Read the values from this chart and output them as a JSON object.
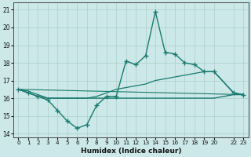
{
  "xlabel": "Humidex (Indice chaleur)",
  "xlim": [
    -0.5,
    23.5
  ],
  "ylim": [
    13.8,
    21.4
  ],
  "yticks": [
    14,
    15,
    16,
    17,
    18,
    19,
    20,
    21
  ],
  "xticks": [
    0,
    1,
    2,
    3,
    4,
    5,
    6,
    7,
    8,
    9,
    10,
    11,
    12,
    13,
    14,
    15,
    16,
    17,
    18,
    19,
    20,
    22,
    23
  ],
  "xtick_labels": [
    "0",
    "1",
    "2",
    "3",
    "4",
    "5",
    "6",
    "7",
    "8",
    "9",
    "10",
    "11",
    "12",
    "13",
    "14",
    "15",
    "16",
    "17",
    "18",
    "19",
    "20",
    "22",
    "23"
  ],
  "line_color": "#1a7a6e",
  "bg_color": "#cce8e8",
  "grid_color": "#aacfcf",
  "line1_x": [
    0,
    1,
    2,
    3,
    4,
    5,
    6,
    7,
    8,
    9,
    10,
    11,
    12,
    13,
    14,
    15,
    16,
    17,
    18,
    19,
    20,
    22,
    23
  ],
  "line1_y": [
    16.5,
    16.3,
    16.1,
    15.9,
    15.3,
    14.7,
    14.3,
    14.5,
    15.6,
    16.1,
    16.1,
    18.1,
    17.9,
    18.4,
    20.9,
    18.6,
    18.5,
    18.0,
    17.9,
    17.5,
    17.5,
    16.3,
    16.2
  ],
  "line2_x": [
    0,
    1,
    2,
    3,
    4,
    5,
    6,
    7,
    8,
    9,
    10,
    11,
    12,
    13,
    14,
    15,
    16,
    17,
    18,
    19,
    20,
    22,
    23
  ],
  "line2_y": [
    16.5,
    16.3,
    16.1,
    16.0,
    16.0,
    16.0,
    16.0,
    16.0,
    16.0,
    16.0,
    16.0,
    16.0,
    16.0,
    16.0,
    16.0,
    16.0,
    16.0,
    16.0,
    16.0,
    16.0,
    16.0,
    16.2,
    16.2
  ],
  "line3_x": [
    0,
    1,
    2,
    3,
    4,
    5,
    6,
    7,
    8,
    9,
    10,
    11,
    12,
    13,
    14,
    15,
    16,
    17,
    18,
    19,
    20,
    22,
    23
  ],
  "line3_y": [
    16.5,
    16.4,
    16.2,
    16.0,
    16.0,
    16.0,
    16.0,
    16.0,
    16.1,
    16.3,
    16.5,
    16.6,
    16.7,
    16.8,
    17.0,
    17.1,
    17.2,
    17.3,
    17.4,
    17.5,
    17.5,
    16.3,
    16.2
  ],
  "line4_x": [
    0,
    23
  ],
  "line4_y": [
    16.5,
    16.2
  ]
}
